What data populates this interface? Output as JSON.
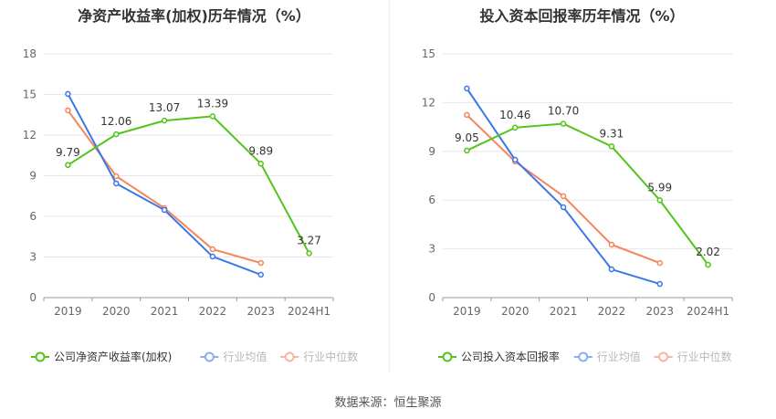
{
  "chart_data": [
    {
      "type": "line",
      "title": "净资产收益率(加权)历年情况（%）",
      "categories": [
        "2019",
        "2020",
        "2021",
        "2022",
        "2023",
        "2024H1"
      ],
      "ylim": [
        0,
        18
      ],
      "yticks": [
        0,
        3,
        6,
        9,
        12,
        15,
        18
      ],
      "grid": true,
      "legend": "bottom",
      "series": [
        {
          "name": "公司净资产收益率(加权)",
          "color": "#52c41a",
          "values": [
            9.79,
            12.06,
            13.07,
            13.39,
            9.89,
            3.27
          ],
          "labels": true
        },
        {
          "name": "行业均值",
          "color": "#3a78e7",
          "values": [
            15.04,
            8.43,
            6.47,
            3.03,
            1.69,
            null
          ]
        },
        {
          "name": "行业中位数",
          "color": "#f5855a",
          "values": [
            13.82,
            8.97,
            6.61,
            3.57,
            2.56,
            null
          ]
        }
      ]
    },
    {
      "type": "line",
      "title": "投入资本回报率历年情况（%）",
      "categories": [
        "2019",
        "2020",
        "2021",
        "2022",
        "2023",
        "2024H1"
      ],
      "ylim": [
        0,
        15
      ],
      "yticks": [
        0,
        3,
        6,
        9,
        12,
        15
      ],
      "grid": true,
      "legend": "bottom",
      "series": [
        {
          "name": "公司投入资本回报率",
          "color": "#52c41a",
          "values": [
            9.05,
            10.46,
            10.7,
            9.31,
            5.99,
            2.02
          ],
          "labels": true
        },
        {
          "name": "行业均值",
          "color": "#3a78e7",
          "values": [
            12.87,
            8.48,
            5.56,
            1.74,
            0.84,
            null
          ]
        },
        {
          "name": "行业中位数",
          "color": "#f5855a",
          "values": [
            11.24,
            8.37,
            6.24,
            3.26,
            2.13,
            null
          ]
        }
      ]
    }
  ],
  "source": "数据来源：恒生聚源"
}
